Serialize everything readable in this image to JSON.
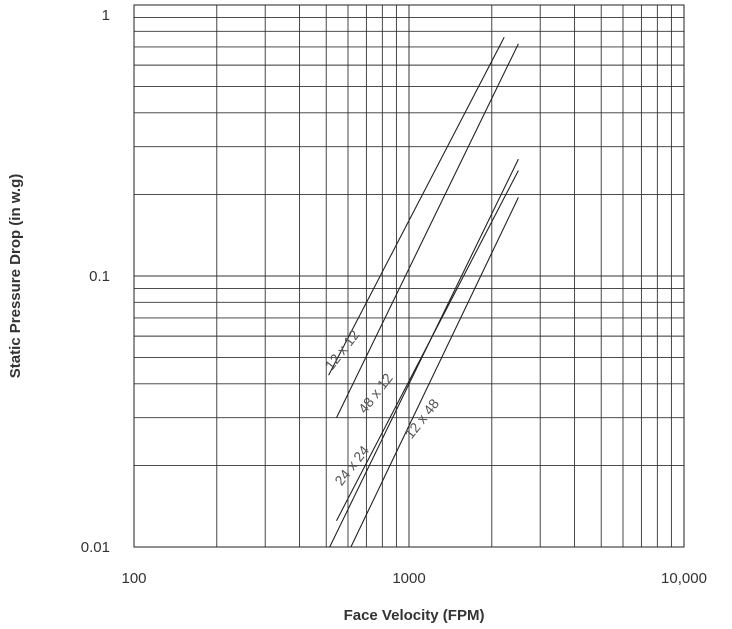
{
  "chart_data": {
    "type": "line",
    "xlabel": "Face Velocity (FPM)",
    "ylabel": "Static Pressure Drop (in w.g)",
    "x_scale": "log",
    "y_scale": "log",
    "xlim": [
      100,
      10000
    ],
    "ylim": [
      0.01,
      1
    ],
    "grid": true,
    "x_ticks": [
      {
        "value": 100,
        "label": "100"
      },
      {
        "value": 1000,
        "label": "1000"
      },
      {
        "value": 10000,
        "label": "10,000"
      }
    ],
    "y_ticks": [
      {
        "value": 0.01,
        "label": "0.01"
      },
      {
        "value": 0.1,
        "label": "0.1"
      },
      {
        "value": 1,
        "label": "1"
      }
    ],
    "series": [
      {
        "name": "12 x 12",
        "x": [
          510,
          2220
        ],
        "y": [
          0.043,
          0.76
        ]
      },
      {
        "name": "48 x 12",
        "x": [
          545,
          2500
        ],
        "y": [
          0.03,
          0.72
        ]
      },
      {
        "name": "24 x 24",
        "x": [
          515,
          2500
        ],
        "y": [
          0.01,
          0.27
        ]
      },
      {
        "name": "",
        "x": [
          545,
          2500
        ],
        "y": [
          0.0125,
          0.245
        ]
      },
      {
        "name": "12 x 48",
        "x": [
          615,
          2500
        ],
        "y": [
          0.01,
          0.195
        ]
      }
    ],
    "series_labels": [
      {
        "text": "12 x 12",
        "at": [
          590,
          0.052
        ]
      },
      {
        "text": "48 x 12",
        "at": [
          780,
          0.036
        ]
      },
      {
        "text": "24 x 24",
        "at": [
          640,
          0.0195
        ]
      },
      {
        "text": "12 x 48",
        "at": [
          1150,
          0.029
        ]
      }
    ]
  }
}
